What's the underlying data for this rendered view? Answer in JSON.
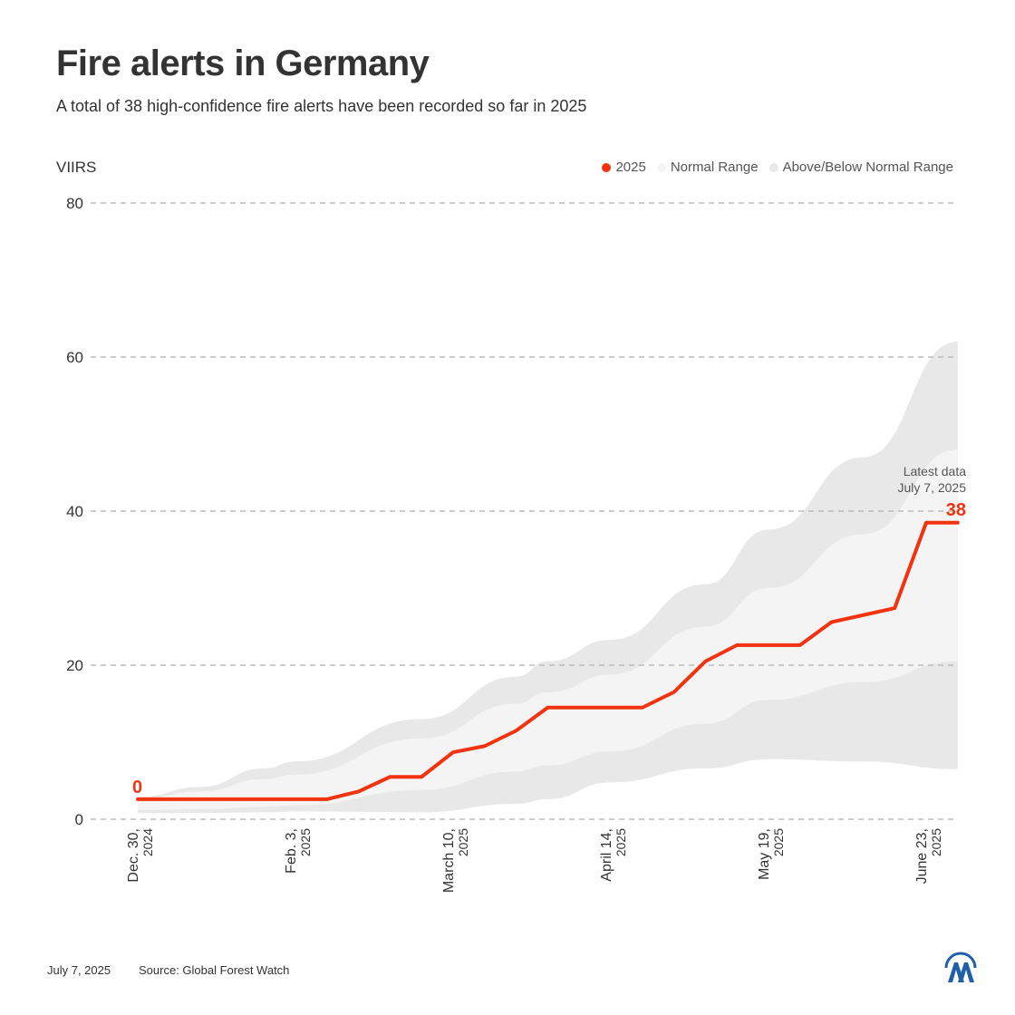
{
  "chart_data": {
    "type": "line",
    "title": "Fire alerts in Germany",
    "subtitle": "A total of 38 high-confidence fire alerts have been recorded so far in 2025",
    "ylabel": "VIIRS",
    "ylim": [
      0,
      80
    ],
    "yticks": [
      0,
      20,
      40,
      60,
      80
    ],
    "xlim": [
      "2024-12-30",
      "2025-06-30"
    ],
    "xticks": [
      {
        "date": "2024-12-30",
        "line1": "Dec. 30,",
        "line2": "2024"
      },
      {
        "date": "2025-02-03",
        "line1": "Feb. 3,",
        "line2": "2025"
      },
      {
        "date": "2025-03-10",
        "line1": "March 10,",
        "line2": "2025"
      },
      {
        "date": "2025-04-14",
        "line1": "April 14,",
        "line2": "2025"
      },
      {
        "date": "2025-05-19",
        "line1": "May 19,",
        "line2": "2025"
      },
      {
        "date": "2025-06-23",
        "line1": "June 23,",
        "line2": "2025"
      }
    ],
    "grid": true,
    "legend_position": "top-right",
    "legend": [
      {
        "label": "2025",
        "color": "#f2330f"
      },
      {
        "label": "Normal Range",
        "color": "#f4f4f4"
      },
      {
        "label": "Above/Below Normal Range",
        "color": "#e8e8e8"
      }
    ],
    "series": [
      {
        "name": "2025",
        "color": "#f2330f",
        "x": [
          "2024-12-30",
          "2025-01-06",
          "2025-01-13",
          "2025-01-20",
          "2025-01-27",
          "2025-02-03",
          "2025-02-10",
          "2025-02-17",
          "2025-02-24",
          "2025-03-03",
          "2025-03-10",
          "2025-03-17",
          "2025-03-24",
          "2025-03-31",
          "2025-04-07",
          "2025-04-14",
          "2025-04-21",
          "2025-04-28",
          "2025-05-05",
          "2025-05-12",
          "2025-05-19",
          "2025-05-26",
          "2025-06-02",
          "2025-06-09",
          "2025-06-16",
          "2025-06-23",
          "2025-06-30"
        ],
        "y": [
          2.6,
          2.6,
          2.6,
          2.6,
          2.6,
          2.6,
          2.6,
          3.6,
          5.5,
          5.5,
          8.7,
          9.5,
          11.5,
          14.5,
          14.5,
          14.5,
          14.5,
          16.5,
          20.5,
          22.6,
          22.6,
          22.6,
          25.6,
          26.5,
          27.4,
          38.5,
          38.5
        ]
      }
    ],
    "bands": {
      "x": [
        "2024-12-30",
        "2025-01-13",
        "2025-01-27",
        "2025-02-03",
        "2025-03-03",
        "2025-03-24",
        "2025-03-31",
        "2025-04-14",
        "2025-05-05",
        "2025-05-19",
        "2025-06-09",
        "2025-06-30"
      ],
      "outer_upper": [
        2.9,
        4.2,
        6.6,
        7.5,
        13,
        18.5,
        20.5,
        23.3,
        30.5,
        37.6,
        47,
        62
      ],
      "inner_upper": [
        2.6,
        3.6,
        5.2,
        5.8,
        10.5,
        15,
        16.5,
        18.8,
        25,
        30,
        37,
        48
      ],
      "inner_lower": [
        1.2,
        1.3,
        1.6,
        1.8,
        3.8,
        6.2,
        7,
        8.8,
        12.4,
        15.5,
        17.8,
        20.5
      ],
      "outer_lower": [
        0.8,
        0.8,
        0.9,
        1,
        0.9,
        2,
        2.6,
        4.8,
        6.6,
        7.8,
        7.5,
        6.5
      ]
    },
    "annotations": {
      "start_label": "0",
      "end_label": "38",
      "latest_line1": "Latest data",
      "latest_line2": "July 7, 2025"
    }
  },
  "footer": {
    "date": "July 7, 2025",
    "source": "Source: Global Forest Watch"
  },
  "logo": {
    "text": "AA",
    "color": "#1f5fa8"
  }
}
